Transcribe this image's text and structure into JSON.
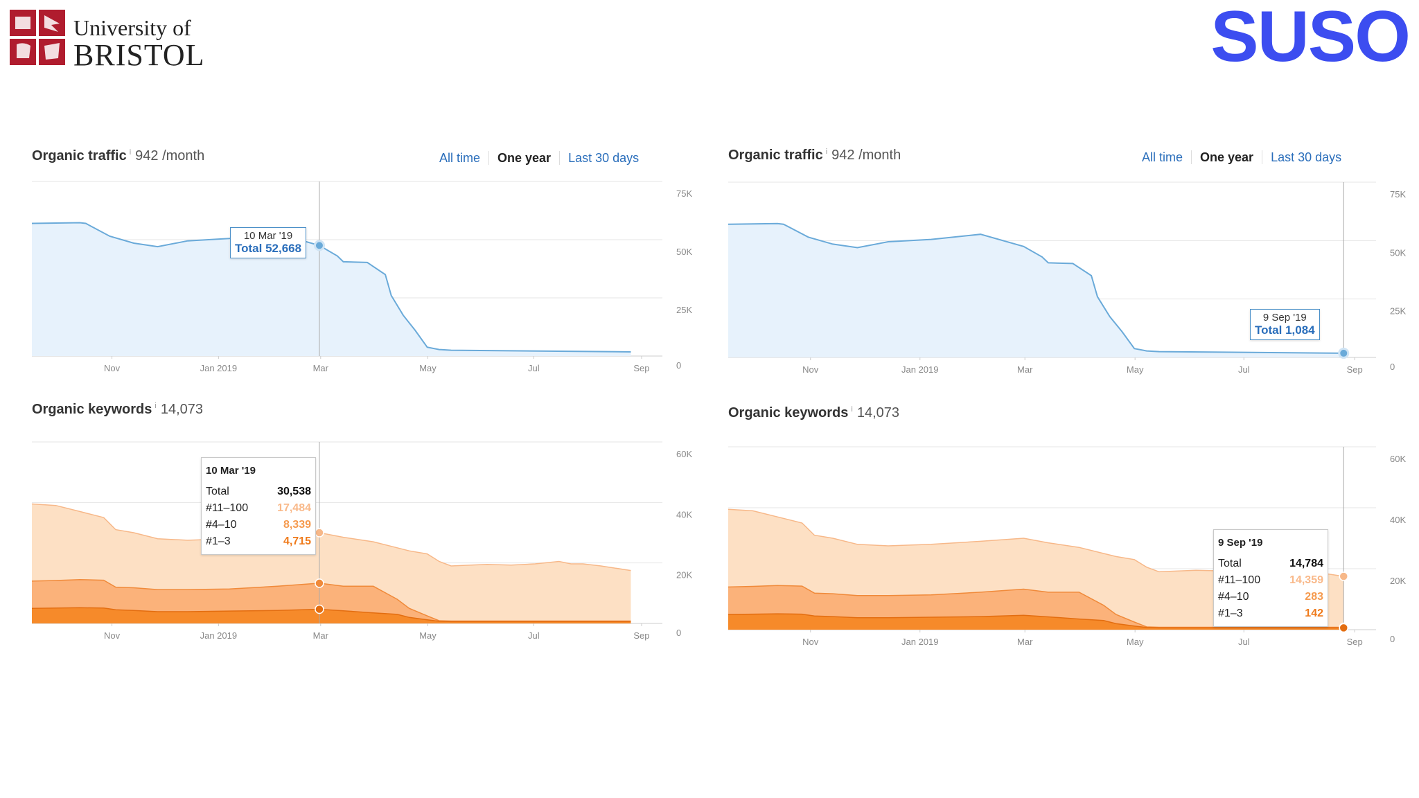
{
  "branding": {
    "university_line1": "University of",
    "university_line2": "BRISTOL",
    "agency": "SUSO"
  },
  "colors": {
    "traffic_line": "#6aaad9",
    "traffic_fill": "#e7f2fc",
    "kw_11_100": "#fde0c4",
    "kw_4_10": "#fbb27a",
    "kw_1_3": "#f68a2a",
    "agency": "#3c4df0"
  },
  "panels": [
    {
      "traffic": {
        "title": "Organic traffic",
        "info": "i",
        "value": "942 /month",
        "tabs": [
          "All time",
          "One year",
          "Last 30 days"
        ],
        "active_tab": "One year",
        "tooltip": {
          "date": "10 Mar '19",
          "total_label": "Total",
          "total": "52,668"
        }
      },
      "keywords": {
        "title": "Organic keywords",
        "info": "i",
        "value": "14,073",
        "tooltip": {
          "date": "10 Mar '19",
          "rows": [
            {
              "label": "Total",
              "value": "30,538"
            },
            {
              "label": "#11–100",
              "value": "17,484"
            },
            {
              "label": "#4–10",
              "value": "8,339"
            },
            {
              "label": "#1–3",
              "value": "4,715"
            }
          ]
        }
      }
    },
    {
      "traffic": {
        "title": "Organic traffic",
        "info": "i",
        "value": "942 /month",
        "tabs": [
          "All time",
          "One year",
          "Last 30 days"
        ],
        "active_tab": "One year",
        "tooltip": {
          "date": "9 Sep '19",
          "total_label": "Total",
          "total": "1,084"
        }
      },
      "keywords": {
        "title": "Organic keywords",
        "info": "i",
        "value": "14,073",
        "tooltip": {
          "date": "9 Sep '19",
          "rows": [
            {
              "label": "Total",
              "value": "14,784"
            },
            {
              "label": "#11–100",
              "value": "14,359"
            },
            {
              "label": "#4–10",
              "value": "283"
            },
            {
              "label": "#1–3",
              "value": "142"
            }
          ]
        }
      }
    }
  ],
  "chart_data": [
    {
      "type": "area",
      "title": "Organic traffic",
      "xticks": [
        "Nov",
        "Jan 2019",
        "Mar",
        "May",
        "Jul",
        "Sep"
      ],
      "yticks": [
        "75K",
        "50K",
        "25K",
        "0"
      ],
      "ylim": [
        0,
        75000
      ],
      "x": [
        0,
        0.08,
        0.09,
        0.13,
        0.17,
        0.21,
        0.26,
        0.33,
        0.41,
        0.48,
        0.51,
        0.52,
        0.56,
        0.59,
        0.6,
        0.62,
        0.64,
        0.66,
        0.68,
        0.7,
        1.0
      ],
      "series": [
        {
          "values": [
            57000,
            57300,
            57000,
            51500,
            48500,
            47000,
            49500,
            50500,
            52700,
            47500,
            43000,
            40500,
            40200,
            35000,
            26000,
            17500,
            11000,
            3800,
            2800,
            2500,
            1800
          ]
        }
      ]
    },
    {
      "type": "area",
      "title": "Organic keywords",
      "xticks": [
        "Nov",
        "Jan 2019",
        "Mar",
        "May",
        "Jul",
        "Sep"
      ],
      "yticks": [
        "60K",
        "40K",
        "20K",
        "0"
      ],
      "ylim": [
        0,
        60000
      ],
      "x": [
        0,
        0.04,
        0.08,
        0.12,
        0.14,
        0.17,
        0.21,
        0.26,
        0.33,
        0.41,
        0.48,
        0.52,
        0.57,
        0.61,
        0.63,
        0.66,
        0.68,
        0.7,
        0.76,
        0.8,
        0.84,
        0.88,
        0.9,
        0.92,
        0.95,
        1.0
      ],
      "series": [
        {
          "name": "#11–100",
          "values": [
            39500,
            39000,
            37000,
            35000,
            31000,
            30000,
            28000,
            27500,
            28000,
            29000,
            30000,
            28500,
            27000,
            25000,
            24000,
            23000,
            20500,
            19000,
            19500,
            19300,
            19700,
            20500,
            19700,
            19700,
            19000,
            17500
          ]
        },
        {
          "name": "#4–10",
          "values": [
            14000,
            14200,
            14500,
            14300,
            12000,
            11800,
            11200,
            11200,
            11400,
            12300,
            13300,
            12300,
            12300,
            8000,
            5000,
            2500,
            900,
            800,
            800,
            800,
            800,
            800,
            800,
            800,
            800,
            800
          ]
        },
        {
          "name": "#1–3",
          "values": [
            5000,
            5100,
            5200,
            5100,
            4500,
            4300,
            3900,
            3900,
            4100,
            4300,
            4700,
            4200,
            3500,
            3000,
            2000,
            1200,
            700,
            600,
            600,
            600,
            600,
            600,
            600,
            600,
            600,
            600
          ]
        }
      ]
    }
  ]
}
